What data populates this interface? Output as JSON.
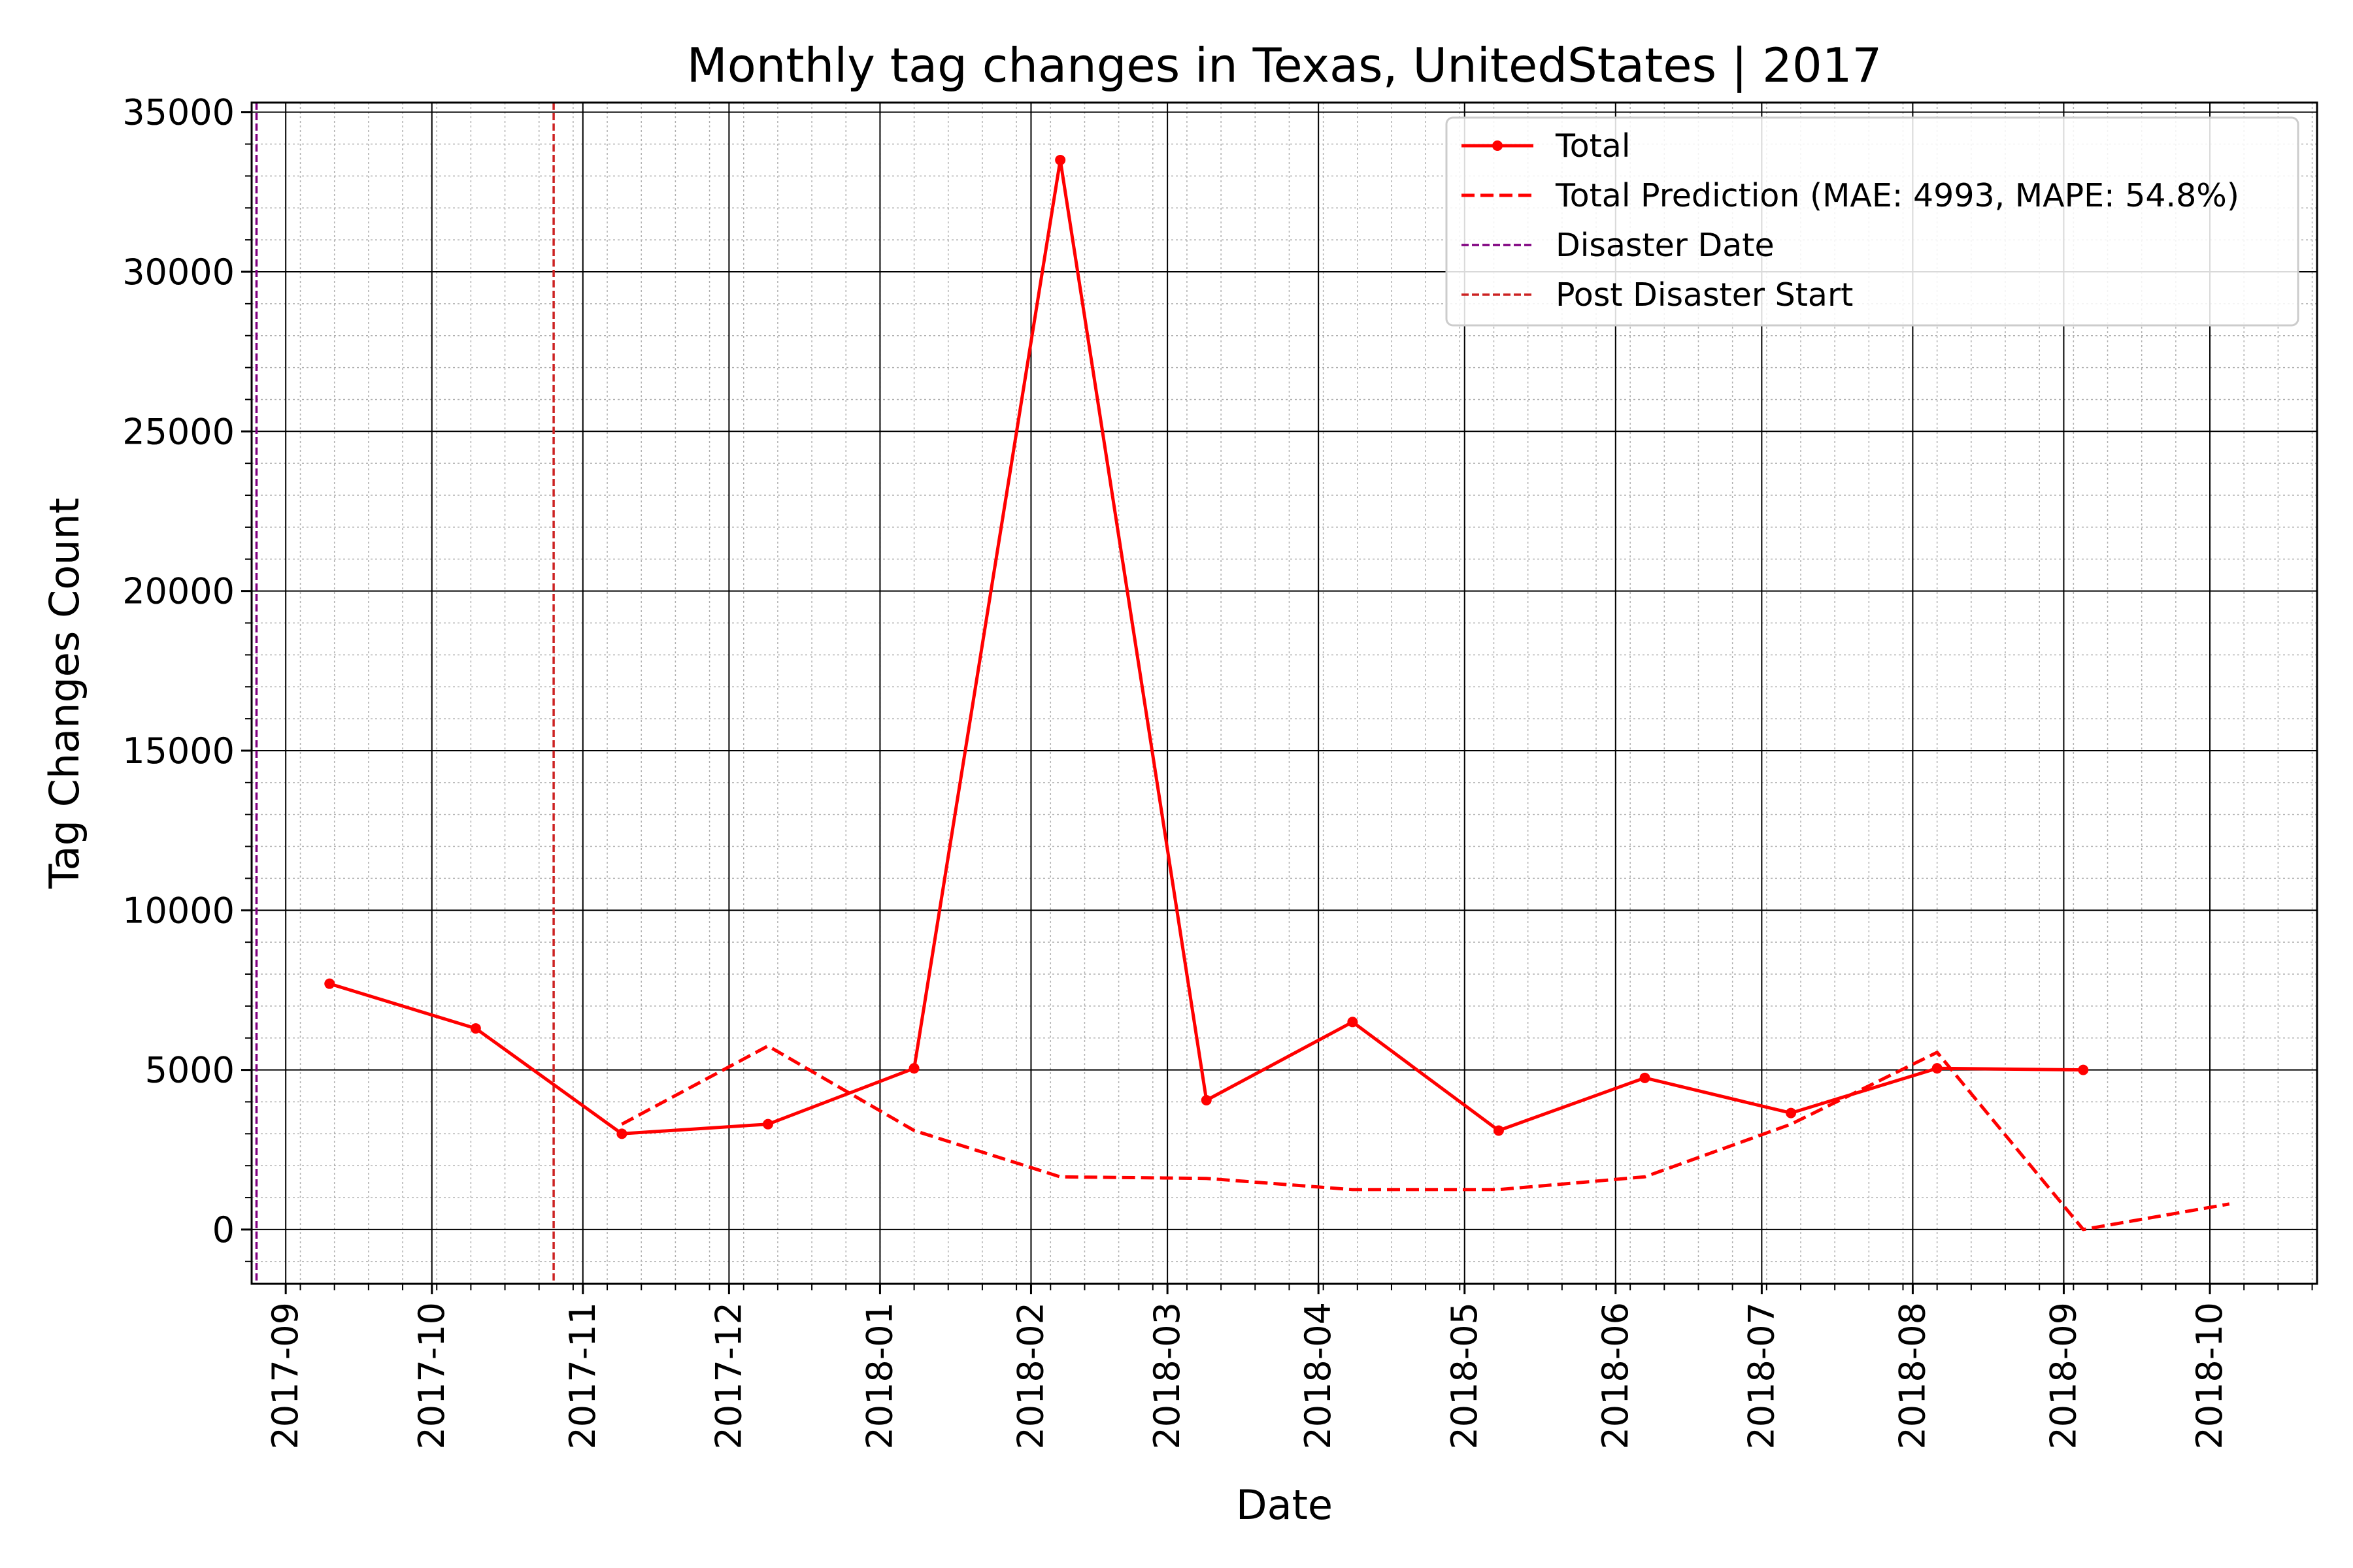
{
  "chart_data": {
    "type": "line",
    "title": "Monthly tag changes in Texas, UnitedStates | 2017",
    "xlabel": "Date",
    "ylabel": "Tag Changes Count",
    "xlim": [
      "2017-08-25",
      "2018-10-23"
    ],
    "ylim": [
      -1700,
      35300
    ],
    "x_ticks": [
      "2017-09",
      "2017-10",
      "2017-11",
      "2017-12",
      "2018-01",
      "2018-02",
      "2018-03",
      "2018-04",
      "2018-05",
      "2018-06",
      "2018-07",
      "2018-08",
      "2018-09",
      "2018-10"
    ],
    "x_tick_dates": [
      "2017-09-01",
      "2017-10-01",
      "2017-11-01",
      "2017-12-01",
      "2018-01-01",
      "2018-02-01",
      "2018-03-01",
      "2018-04-01",
      "2018-05-01",
      "2018-06-01",
      "2018-07-01",
      "2018-08-01",
      "2018-09-01",
      "2018-10-01"
    ],
    "y_ticks": [
      0,
      5000,
      10000,
      15000,
      20000,
      25000,
      30000,
      35000
    ],
    "grid": true,
    "legend_position": "top-right",
    "series": [
      {
        "name": "Total",
        "style": "solid-with-markers",
        "color": "#ff0000",
        "x": [
          "2017-09-10",
          "2017-10-10",
          "2017-11-09",
          "2017-12-09",
          "2018-01-08",
          "2018-02-07",
          "2018-03-09",
          "2018-04-08",
          "2018-05-08",
          "2018-06-07",
          "2018-07-07",
          "2018-08-06",
          "2018-09-05"
        ],
        "values": [
          7700,
          6300,
          3000,
          3300,
          5050,
          33500,
          4050,
          6500,
          3100,
          4750,
          3650,
          5050,
          5000
        ]
      },
      {
        "name": "Total Prediction (MAE: 4993, MAPE: 54.8%)",
        "style": "dashed",
        "color": "#ff0000",
        "x": [
          "2017-11-09",
          "2017-12-09",
          "2018-01-08",
          "2018-02-07",
          "2018-03-09",
          "2018-04-08",
          "2018-05-08",
          "2018-06-07",
          "2018-07-07",
          "2018-08-06",
          "2018-09-05",
          "2018-10-05"
        ],
        "values": [
          3300,
          5750,
          3100,
          1650,
          1600,
          1250,
          1250,
          1650,
          3300,
          5550,
          0,
          800
        ]
      }
    ],
    "vlines": [
      {
        "name": "Disaster Date",
        "x": "2017-08-26",
        "color": "#800080"
      },
      {
        "name": "Post Disaster Start",
        "x": "2017-10-26",
        "color": "#cc2222"
      }
    ]
  }
}
